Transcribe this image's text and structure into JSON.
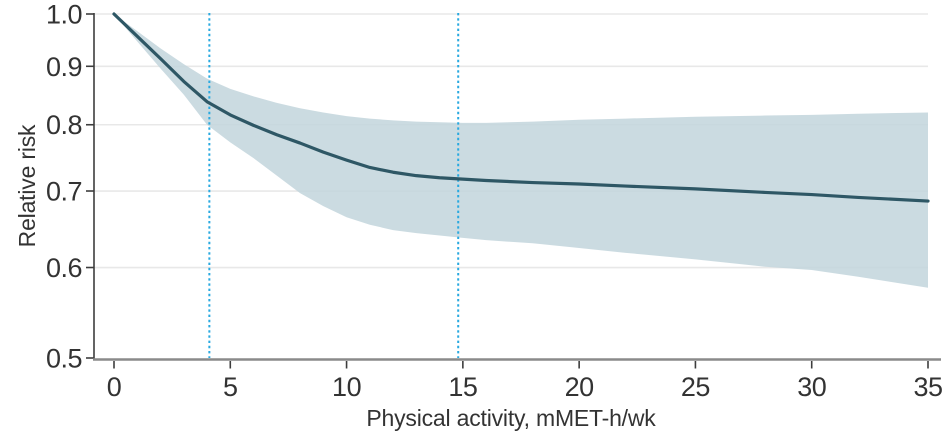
{
  "chart_data": {
    "type": "line",
    "xlabel": "Physical activity, mMET-h/wk",
    "ylabel": "Relative risk",
    "xlim": [
      0,
      35
    ],
    "ylim": [
      0.5,
      1.0
    ],
    "y_scale": "log",
    "grid": "horizontal",
    "legend": "none",
    "x_ticks": [
      0,
      5,
      10,
      15,
      20,
      25,
      30,
      35
    ],
    "y_ticks": [
      1.0,
      0.9,
      0.8,
      0.7,
      0.6,
      0.5
    ],
    "y_tick_labels": [
      "1.0",
      "0.9",
      "0.8",
      "0.7",
      "0.6",
      "0.5"
    ],
    "x": [
      0,
      1,
      2,
      3,
      4,
      5,
      6,
      7,
      8,
      9,
      10,
      11,
      12,
      13,
      14,
      15,
      16,
      18,
      20,
      22,
      25,
      28,
      30,
      32,
      35
    ],
    "relative_risk": [
      1.0,
      0.956,
      0.914,
      0.873,
      0.838,
      0.816,
      0.799,
      0.784,
      0.771,
      0.757,
      0.745,
      0.734,
      0.727,
      0.722,
      0.719,
      0.717,
      0.715,
      0.712,
      0.71,
      0.707,
      0.703,
      0.698,
      0.695,
      0.691,
      0.686
    ],
    "ci_upper": [
      1.0,
      0.966,
      0.933,
      0.904,
      0.878,
      0.86,
      0.847,
      0.836,
      0.827,
      0.82,
      0.814,
      0.81,
      0.807,
      0.805,
      0.804,
      0.803,
      0.803,
      0.805,
      0.808,
      0.81,
      0.813,
      0.815,
      0.816,
      0.818,
      0.82
    ],
    "ci_lower": [
      1.0,
      0.946,
      0.896,
      0.85,
      0.8,
      0.772,
      0.748,
      0.722,
      0.697,
      0.679,
      0.664,
      0.654,
      0.647,
      0.643,
      0.64,
      0.637,
      0.634,
      0.63,
      0.624,
      0.618,
      0.61,
      0.601,
      0.597,
      0.589,
      0.576
    ],
    "reference_lines_x": [
      4.1,
      14.8
    ],
    "colors": {
      "curve": "#2E5765",
      "band": "#C2D5DC",
      "reference_line": "#29A9E0",
      "gridline": "#E8E8E8",
      "axis_x": "#8A8A8A",
      "axis_y": "#3D3D3D",
      "text": "#333333"
    }
  }
}
